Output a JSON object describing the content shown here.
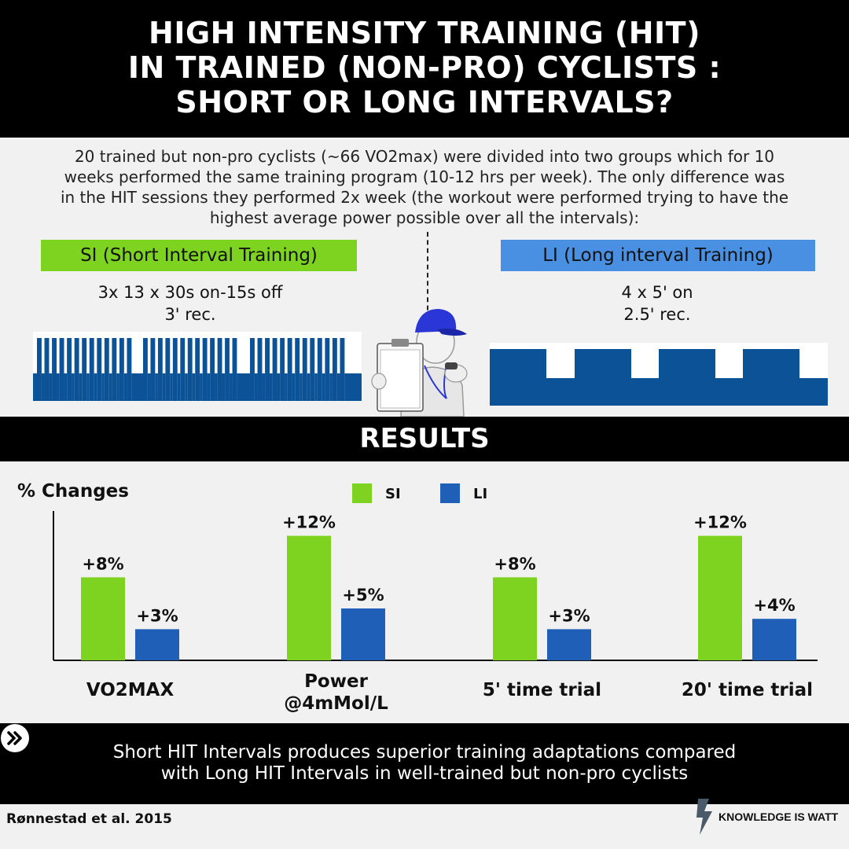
{
  "header": {
    "title_lines": [
      "HIGH INTENSITY TRAINING (HIT)",
      "IN TRAINED (NON-PRO) CYCLISTS :",
      "SHORT OR LONG INTERVALS?"
    ]
  },
  "intro": {
    "lines": [
      "20 trained but non-pro cyclists (~66 VO2max) were divided into two groups which for 10",
      "weeks performed the same training program (10-12 hrs per week). The only difference was",
      "in the HIT sessions they performed 2x week (the workout were performed trying to have the",
      "highest average power possible over all the intervals):"
    ]
  },
  "protocols": {
    "si": {
      "label": "SI (Short Interval Training)",
      "line1": "3x 13 x 30s on-15s off",
      "line2": "3' rec."
    },
    "li": {
      "label": "LI (Long interval Training)",
      "line1": "4 x 5'  on",
      "line2": "2.5' rec."
    }
  },
  "results": {
    "title": "RESULTS"
  },
  "colors": {
    "si": "#7ed321",
    "li": "#1f5fb8",
    "wave": "#0b5296"
  },
  "chart_data": {
    "type": "bar",
    "ylabel": "% Changes",
    "categories": [
      "VO2MAX",
      "Power @4mMol/L",
      "5' time trial",
      "20' time trial"
    ],
    "category_lines": [
      [
        "VO2MAX"
      ],
      [
        "Power",
        "@4mMol/L"
      ],
      [
        "5' time trial"
      ],
      [
        "20' time trial"
      ]
    ],
    "series": [
      {
        "name": "SI",
        "values": [
          8,
          12,
          8,
          12
        ],
        "labels": [
          "+8%",
          "+12%",
          "+8%",
          "+12%"
        ]
      },
      {
        "name": "LI",
        "values": [
          3,
          5,
          3,
          4
        ],
        "labels": [
          "+3%",
          "+5%",
          "+3%",
          "+4%"
        ]
      }
    ],
    "ylim": [
      0,
      12.5
    ],
    "legend_position": "top-center",
    "grid": false
  },
  "takeaway": {
    "lines": [
      "Short HIT Intervals produces superior training adaptations compared",
      "with Long HIT Intervals in well-trained but non-pro cyclists"
    ]
  },
  "footer": {
    "citation": "Rønnestad et al. 2015",
    "brand": "KNOWLEDGE IS WATT"
  }
}
